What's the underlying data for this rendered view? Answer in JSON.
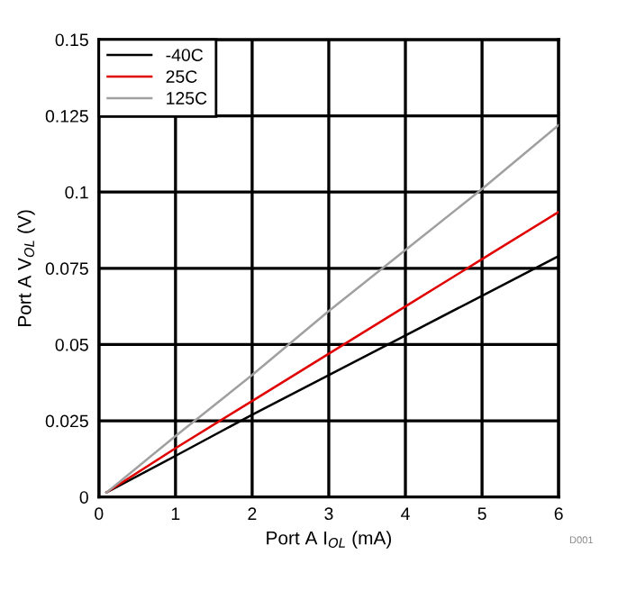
{
  "chart_data": {
    "type": "line",
    "xlabel": "Port A I$_{OL}$ (mA)",
    "ylabel": "Port A V$_{OL}$ (V)",
    "xlim": [
      0,
      6
    ],
    "xticks": [
      0,
      1,
      2,
      3,
      4,
      5,
      6
    ],
    "ylim": [
      0,
      0.15
    ],
    "yticks": [
      0,
      0.025,
      0.05,
      0.075,
      0.1,
      0.125,
      0.15
    ],
    "grid": true,
    "legend": "top left",
    "marker": "none",
    "line_style": "solid",
    "annotations": [
      "D001"
    ],
    "series": [
      {
        "name": "-40C",
        "color": "#000000",
        "x": [
          0.1,
          1,
          2,
          3,
          4,
          5,
          6
        ],
        "values": [
          0.0015,
          0.0135,
          0.027,
          0.04,
          0.053,
          0.066,
          0.079
        ]
      },
      {
        "name": "25C",
        "color": "#e00000",
        "x": [
          0.1,
          1,
          2,
          3,
          4,
          5,
          6
        ],
        "values": [
          0.0015,
          0.016,
          0.0315,
          0.047,
          0.0625,
          0.078,
          0.0935
        ]
      },
      {
        "name": "125C",
        "color": "#a0a0a0",
        "x": [
          0.1,
          1,
          2,
          3,
          4,
          5,
          6
        ],
        "values": [
          0.0015,
          0.02,
          0.04,
          0.061,
          0.081,
          0.101,
          0.122
        ]
      }
    ]
  }
}
